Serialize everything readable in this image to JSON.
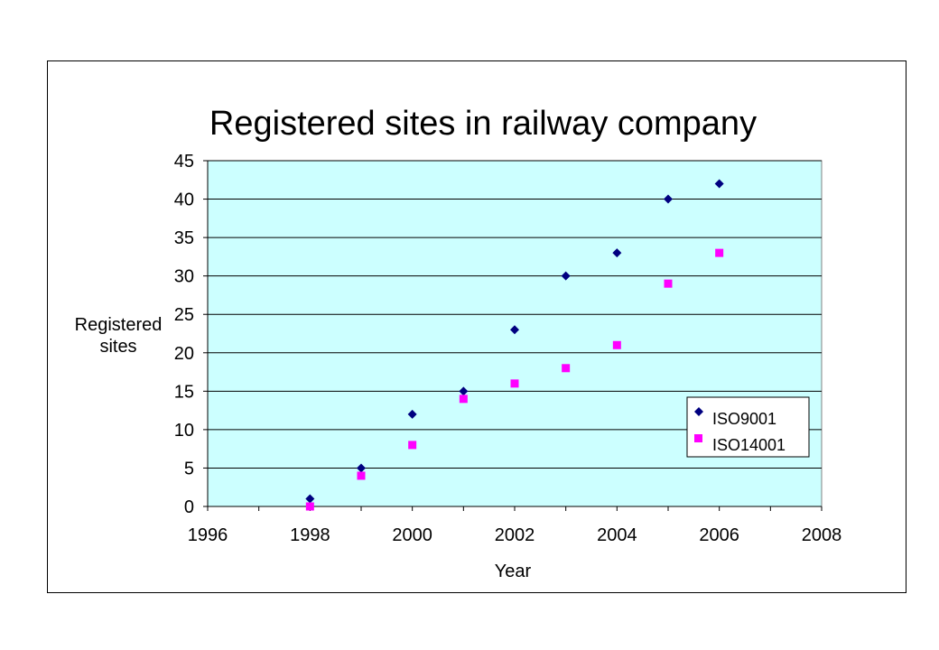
{
  "chart_data": {
    "type": "scatter",
    "title": "Registered sites in railway company",
    "xlabel": "Year",
    "ylabel": [
      "Registered",
      "sites"
    ],
    "xlim": [
      1996,
      2008
    ],
    "ylim": [
      0,
      45
    ],
    "xticks": [
      "1996",
      "1998",
      "2000",
      "2002",
      "2004",
      "2006",
      "2008"
    ],
    "yticks": [
      "0",
      "5",
      "10",
      "15",
      "20",
      "25",
      "30",
      "35",
      "40",
      "45"
    ],
    "grid": "horizontal",
    "legend": "right",
    "plot_background": "#ccffff",
    "series": [
      {
        "name": "ISO9001",
        "marker": "diamond",
        "color": "#000080",
        "points": [
          [
            1998,
            1
          ],
          [
            1999,
            5
          ],
          [
            2000,
            12
          ],
          [
            2001,
            15
          ],
          [
            2002,
            23
          ],
          [
            2003,
            30
          ],
          [
            2004,
            33
          ],
          [
            2005,
            40
          ],
          [
            2006,
            42
          ]
        ]
      },
      {
        "name": "ISO14001",
        "marker": "square",
        "color": "#ff00ff",
        "points": [
          [
            1998,
            0
          ],
          [
            1999,
            4
          ],
          [
            2000,
            8
          ],
          [
            2001,
            14
          ],
          [
            2002,
            16
          ],
          [
            2003,
            18
          ],
          [
            2004,
            21
          ],
          [
            2005,
            29
          ],
          [
            2006,
            33
          ]
        ]
      }
    ]
  }
}
